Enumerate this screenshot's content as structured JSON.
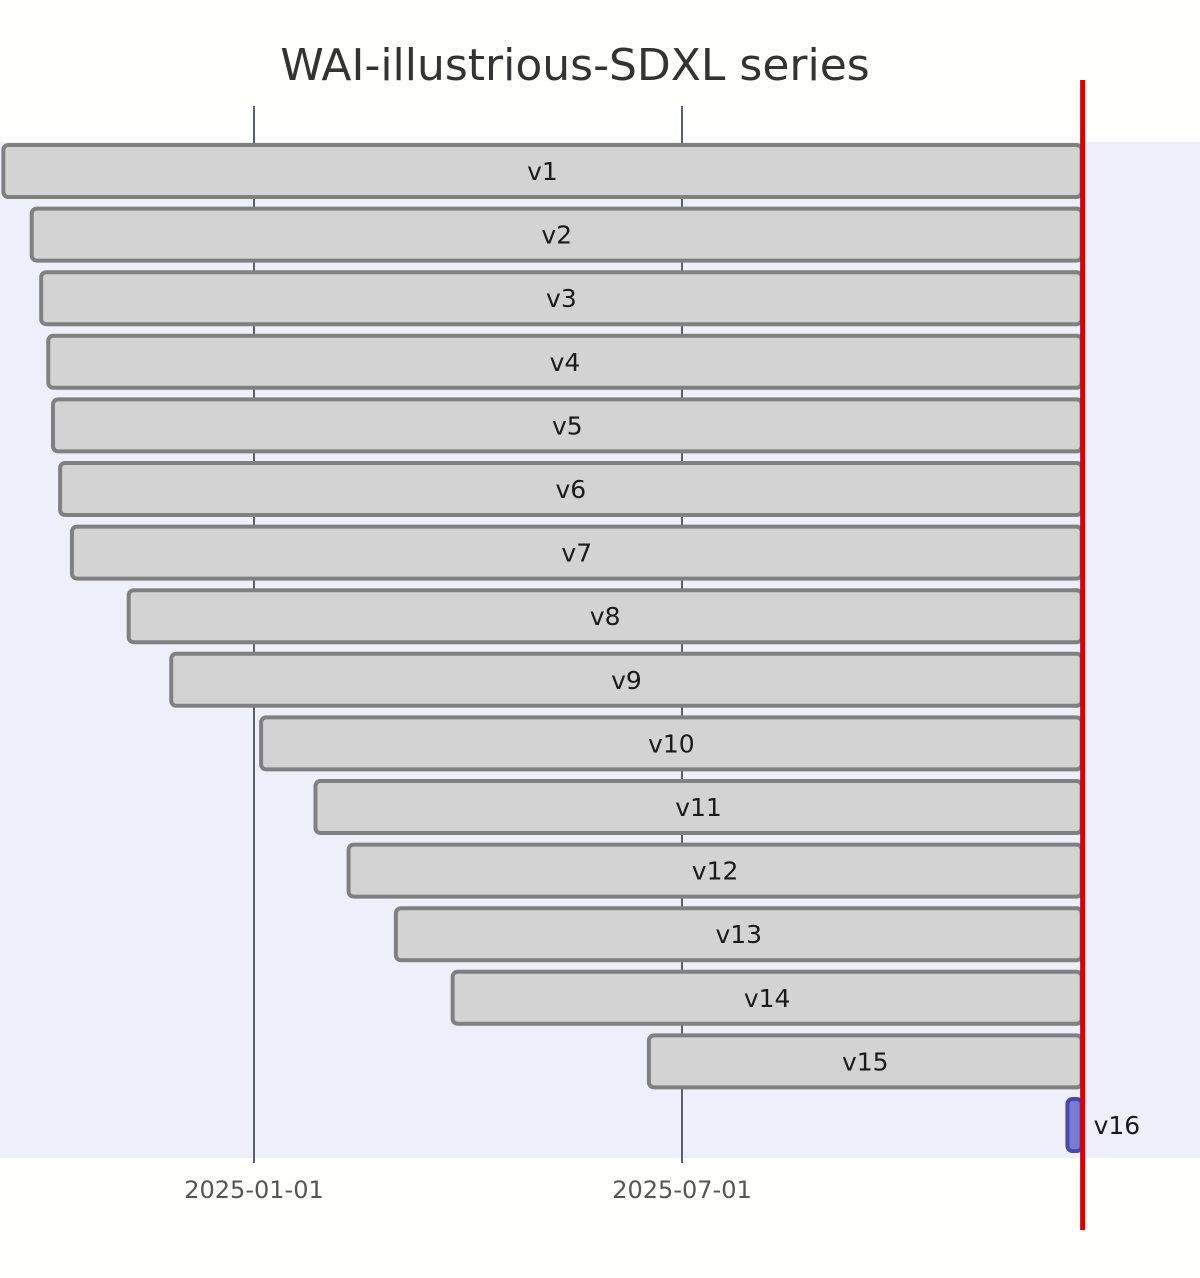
{
  "chart_data": {
    "type": "gantt",
    "title": "WAI-illustrious-SDXL series",
    "x_axis": {
      "type": "date",
      "range": [
        "2024-09-10",
        "2025-12-22"
      ],
      "ticks": [
        "2025-01-01",
        "2025-07-01"
      ],
      "grid": true
    },
    "today_marker": {
      "date": "2025-12-17",
      "color": "#e00000"
    },
    "colors": {
      "plot_background": "#efeffc",
      "bar_fill": "#d3d3d3",
      "bar_stroke": "#808080",
      "highlight_fill": "#7b7bd1",
      "highlight_stroke": "#4848b0",
      "grid": "#5a5f6e"
    },
    "tasks": [
      {
        "label": "v1",
        "start": "2024-09-17",
        "end": "2025-12-17"
      },
      {
        "label": "v2",
        "start": "2024-09-29",
        "end": "2025-12-17"
      },
      {
        "label": "v3",
        "start": "2024-10-03",
        "end": "2025-12-17"
      },
      {
        "label": "v4",
        "start": "2024-10-06",
        "end": "2025-12-17"
      },
      {
        "label": "v5",
        "start": "2024-10-08",
        "end": "2025-12-17"
      },
      {
        "label": "v6",
        "start": "2024-10-11",
        "end": "2025-12-17"
      },
      {
        "label": "v7",
        "start": "2024-10-16",
        "end": "2025-12-17"
      },
      {
        "label": "v8",
        "start": "2024-11-09",
        "end": "2025-12-17"
      },
      {
        "label": "v9",
        "start": "2024-11-27",
        "end": "2025-12-17"
      },
      {
        "label": "v10",
        "start": "2025-01-04",
        "end": "2025-12-17"
      },
      {
        "label": "v11",
        "start": "2025-01-27",
        "end": "2025-12-17"
      },
      {
        "label": "v12",
        "start": "2025-02-10",
        "end": "2025-12-17"
      },
      {
        "label": "v13",
        "start": "2025-03-02",
        "end": "2025-12-17"
      },
      {
        "label": "v14",
        "start": "2025-03-26",
        "end": "2025-12-17"
      },
      {
        "label": "v15",
        "start": "2025-06-17",
        "end": "2025-12-17"
      },
      {
        "label": "v16",
        "start": "2025-12-11",
        "end": "2025-12-17",
        "highlight": true
      }
    ]
  }
}
